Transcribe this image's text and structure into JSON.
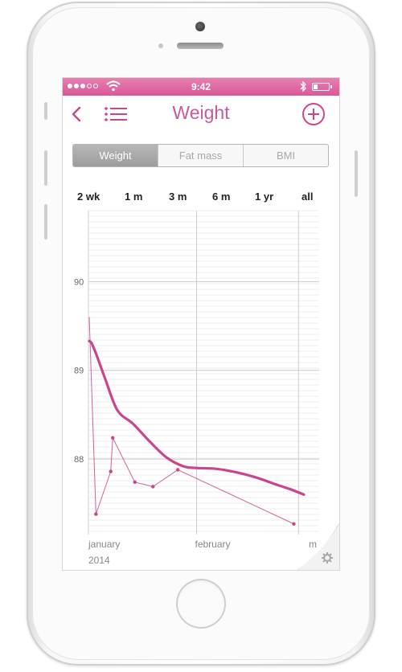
{
  "status_bar": {
    "time": "9:42",
    "signal_dots": [
      true,
      true,
      true,
      false,
      false
    ]
  },
  "nav": {
    "title": "Weight",
    "back_icon": "chevron-left-icon",
    "list_icon": "list-icon",
    "add_icon": "plus-circle-icon"
  },
  "tabs": [
    {
      "label": "Weight",
      "active": true
    },
    {
      "label": "Fat mass",
      "active": false
    },
    {
      "label": "BMI",
      "active": false
    }
  ],
  "ranges": [
    "2 wk",
    "1 m",
    "3 m",
    "6 m",
    "1 yr",
    "all"
  ],
  "colors": {
    "accent": "#c8468c",
    "status_bar": "#df6aa3",
    "title": "#c85a97"
  },
  "settings_icon": "gear-icon",
  "chart_data": {
    "type": "line",
    "title": "",
    "ylabel": "",
    "xlabel": "",
    "y_ticks": [
      88,
      89,
      90
    ],
    "ylim": [
      87.15,
      90.8
    ],
    "x_labels": [
      "january",
      "february",
      "m"
    ],
    "year_label": "2014",
    "grid": true,
    "series": [
      {
        "style": "smooth-trend",
        "points": [
          [
            0.0,
            89.33
          ],
          [
            0.4,
            89.3
          ],
          [
            1.2,
            89.15
          ],
          [
            2.4,
            88.9
          ],
          [
            4.2,
            88.55
          ],
          [
            6.5,
            88.4
          ],
          [
            9.0,
            88.2
          ],
          [
            11.5,
            88.02
          ],
          [
            14.0,
            87.92
          ],
          [
            16.0,
            87.9
          ],
          [
            19.0,
            87.89
          ],
          [
            22.0,
            87.85
          ],
          [
            25.0,
            87.79
          ],
          [
            28.0,
            87.71
          ],
          [
            30.0,
            87.66
          ],
          [
            32.0,
            87.6
          ]
        ]
      },
      {
        "style": "measurements",
        "points": [
          [
            0.0,
            89.6
          ],
          [
            1.0,
            87.38
          ],
          [
            3.2,
            87.86
          ],
          [
            3.5,
            88.24
          ],
          [
            6.8,
            87.74
          ],
          [
            9.5,
            87.69
          ],
          [
            13.2,
            87.88
          ],
          [
            30.5,
            87.27
          ]
        ]
      }
    ]
  }
}
